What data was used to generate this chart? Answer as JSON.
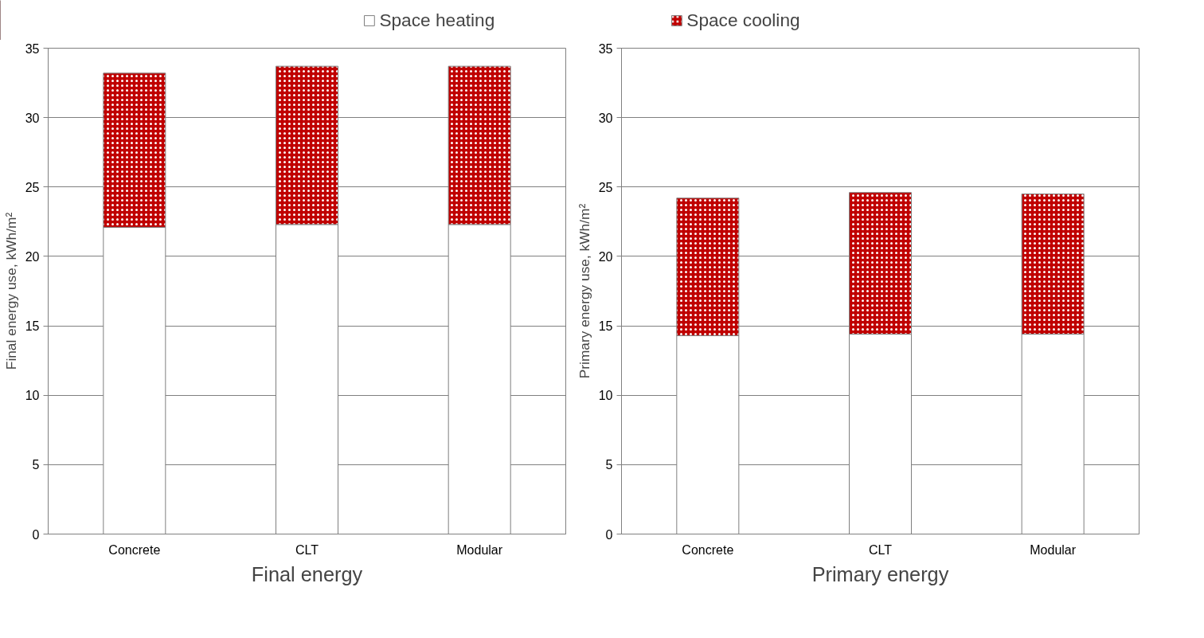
{
  "chart_data": [
    {
      "type": "bar",
      "stacked": true,
      "xlabel": "Final energy",
      "ylabel": "Final energy use, kWh/m²",
      "categories": [
        "Concrete",
        "CLT",
        "Modular"
      ],
      "ylim": [
        0,
        35
      ],
      "yticks": [
        0,
        5,
        10,
        15,
        20,
        25,
        30,
        35
      ],
      "grid": "y",
      "legend": "top",
      "series": [
        {
          "name": "Space heating",
          "color": "#ffffff",
          "values": [
            22.1,
            22.3,
            22.3
          ]
        },
        {
          "name": "Space cooling",
          "color": "#c00000",
          "values": [
            11.1,
            11.4,
            11.4
          ]
        }
      ]
    },
    {
      "type": "bar",
      "stacked": true,
      "xlabel": "Primary energy",
      "ylabel": "Primary energy use, kWh/m²",
      "categories": [
        "Concrete",
        "CLT",
        "Modular"
      ],
      "ylim": [
        0,
        35
      ],
      "yticks": [
        0,
        5,
        10,
        15,
        20,
        25,
        30,
        35
      ],
      "grid": "y",
      "series": [
        {
          "color": "#ffffff",
          "values": [
            14.3,
            14.4,
            14.4
          ]
        },
        {
          "color": "#c00000",
          "values": [
            9.9,
            10.2,
            10.1
          ]
        }
      ]
    }
  ]
}
